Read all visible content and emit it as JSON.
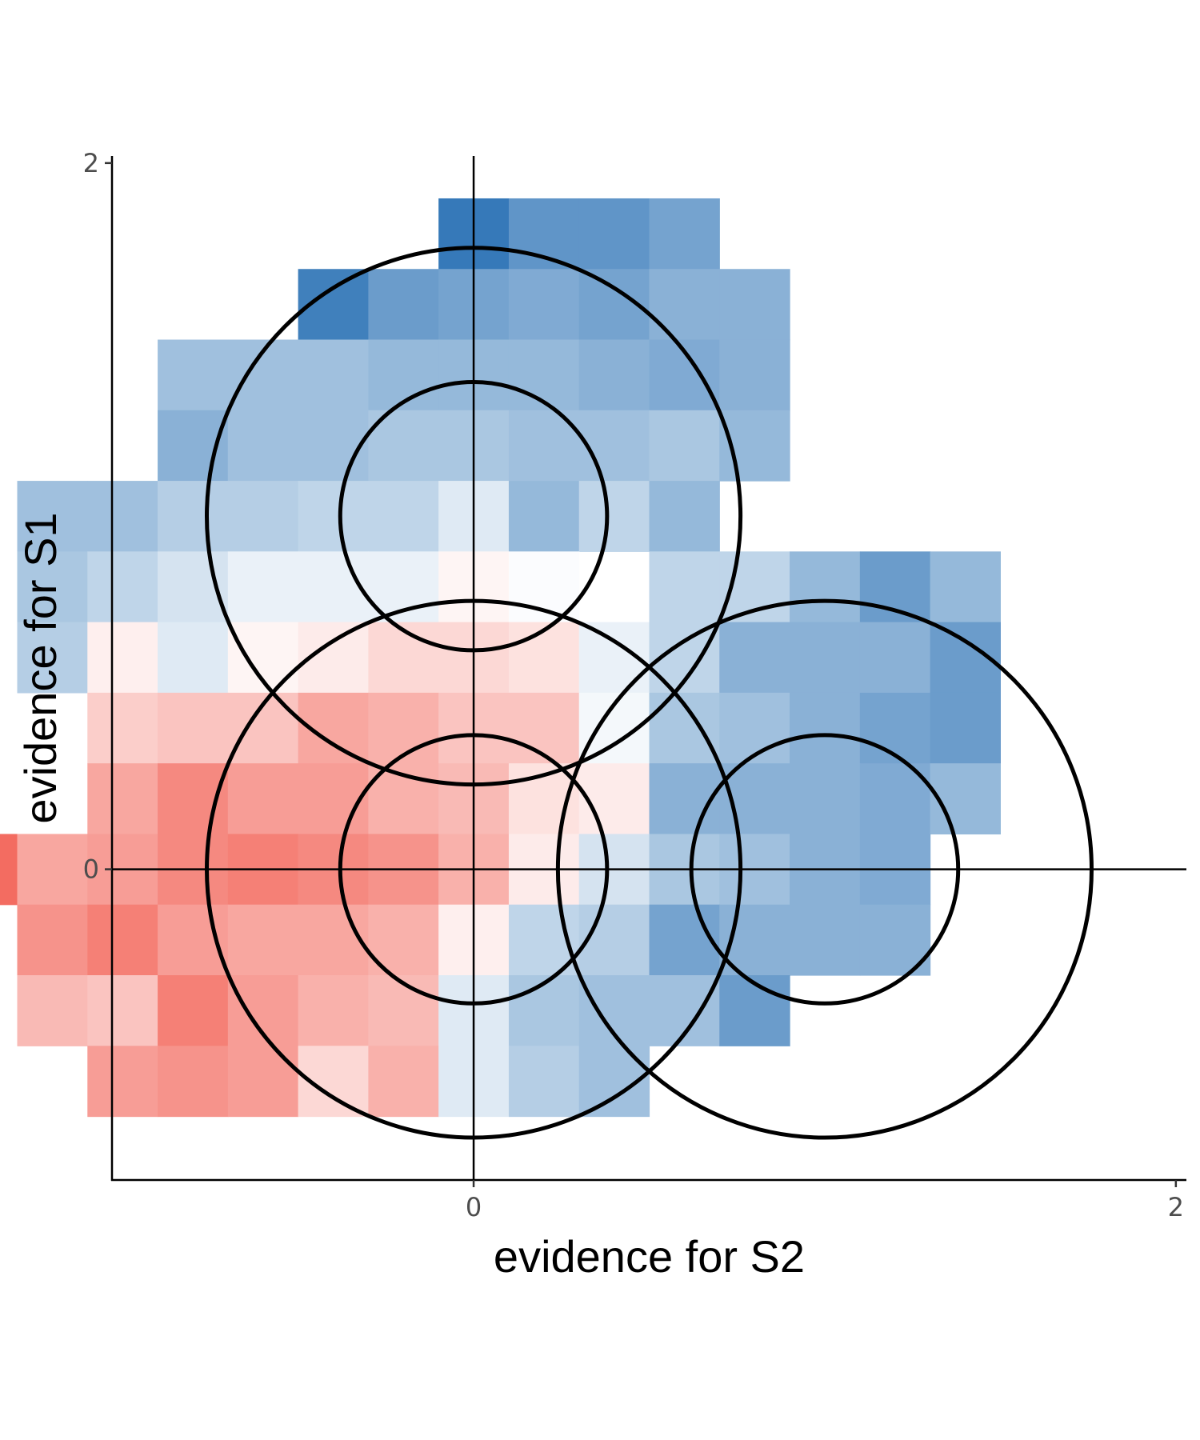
{
  "chart_data": {
    "type": "heatmap",
    "title": "",
    "xlabel": "evidence for S2",
    "ylabel": "evidence for S1",
    "xlim": [
      -1.03,
      2.03
    ],
    "ylim": [
      -0.88,
      2.02
    ],
    "x_ticks": [
      {
        "value": 0,
        "label": "0"
      },
      {
        "value": 2,
        "label": "2"
      }
    ],
    "y_ticks": [
      {
        "value": 0,
        "label": "0"
      },
      {
        "value": 2,
        "label": "2"
      }
    ],
    "reference_lines": {
      "x": 0,
      "y": 0
    },
    "grid": false,
    "legend": "none",
    "colors": {
      "negative": "#ef3b2c",
      "positive": "#2b72b5",
      "neutral": "#ffffff",
      "outline": "#000000"
    },
    "tile_size": 0.2,
    "value_note": "tile value in [-1, 1]: positive = blue, negative = red",
    "tiles": [
      {
        "x": 0.0,
        "y": 1.8,
        "value": 0.95
      },
      {
        "x": 0.2,
        "y": 1.8,
        "value": 0.75
      },
      {
        "x": 0.4,
        "y": 1.8,
        "value": 0.75
      },
      {
        "x": 0.6,
        "y": 1.8,
        "value": 0.65
      },
      {
        "x": -0.4,
        "y": 1.6,
        "value": 0.9
      },
      {
        "x": -0.2,
        "y": 1.6,
        "value": 0.7
      },
      {
        "x": 0.0,
        "y": 1.6,
        "value": 0.65
      },
      {
        "x": 0.2,
        "y": 1.6,
        "value": 0.6
      },
      {
        "x": 0.4,
        "y": 1.6,
        "value": 0.65
      },
      {
        "x": 0.6,
        "y": 1.6,
        "value": 0.55
      },
      {
        "x": 0.8,
        "y": 1.6,
        "value": 0.55
      },
      {
        "x": -0.8,
        "y": 1.4,
        "value": 0.45
      },
      {
        "x": -0.6,
        "y": 1.4,
        "value": 0.45
      },
      {
        "x": -0.4,
        "y": 1.4,
        "value": 0.45
      },
      {
        "x": -0.2,
        "y": 1.4,
        "value": 0.5
      },
      {
        "x": 0.0,
        "y": 1.4,
        "value": 0.5
      },
      {
        "x": 0.2,
        "y": 1.4,
        "value": 0.5
      },
      {
        "x": 0.4,
        "y": 1.4,
        "value": 0.55
      },
      {
        "x": 0.6,
        "y": 1.4,
        "value": 0.6
      },
      {
        "x": 0.8,
        "y": 1.4,
        "value": 0.55
      },
      {
        "x": -0.8,
        "y": 1.2,
        "value": 0.55
      },
      {
        "x": -0.6,
        "y": 1.2,
        "value": 0.45
      },
      {
        "x": -0.4,
        "y": 1.2,
        "value": 0.45
      },
      {
        "x": -0.2,
        "y": 1.2,
        "value": 0.4
      },
      {
        "x": 0.0,
        "y": 1.2,
        "value": 0.4
      },
      {
        "x": 0.2,
        "y": 1.2,
        "value": 0.45
      },
      {
        "x": 0.4,
        "y": 1.2,
        "value": 0.45
      },
      {
        "x": 0.6,
        "y": 1.2,
        "value": 0.4
      },
      {
        "x": 0.8,
        "y": 1.2,
        "value": 0.5
      },
      {
        "x": -1.2,
        "y": 1.0,
        "value": 0.45
      },
      {
        "x": -1.0,
        "y": 1.0,
        "value": 0.45
      },
      {
        "x": -0.8,
        "y": 1.0,
        "value": 0.35
      },
      {
        "x": -0.6,
        "y": 1.0,
        "value": 0.35
      },
      {
        "x": -0.4,
        "y": 1.0,
        "value": 0.3
      },
      {
        "x": -0.2,
        "y": 1.0,
        "value": 0.3
      },
      {
        "x": 0.0,
        "y": 1.0,
        "value": 0.15
      },
      {
        "x": 0.2,
        "y": 1.0,
        "value": 0.5
      },
      {
        "x": 0.4,
        "y": 1.0,
        "value": 0.3
      },
      {
        "x": 0.6,
        "y": 1.0,
        "value": 0.5
      },
      {
        "x": -1.2,
        "y": 0.8,
        "value": 0.4
      },
      {
        "x": -1.0,
        "y": 0.8,
        "value": 0.3
      },
      {
        "x": -0.8,
        "y": 0.8,
        "value": 0.2
      },
      {
        "x": -0.6,
        "y": 0.8,
        "value": 0.1
      },
      {
        "x": -0.4,
        "y": 0.8,
        "value": 0.1
      },
      {
        "x": -0.2,
        "y": 0.8,
        "value": 0.1
      },
      {
        "x": 0.0,
        "y": 0.8,
        "value": -0.05
      },
      {
        "x": 0.2,
        "y": 0.8,
        "value": 0.02
      },
      {
        "x": 0.6,
        "y": 0.8,
        "value": 0.3
      },
      {
        "x": 0.8,
        "y": 0.8,
        "value": 0.3
      },
      {
        "x": 1.0,
        "y": 0.8,
        "value": 0.5
      },
      {
        "x": 1.2,
        "y": 0.8,
        "value": 0.7
      },
      {
        "x": 1.4,
        "y": 0.8,
        "value": 0.5
      },
      {
        "x": -1.2,
        "y": 0.6,
        "value": 0.35
      },
      {
        "x": -1.0,
        "y": 0.6,
        "value": -0.08
      },
      {
        "x": -0.8,
        "y": 0.6,
        "value": 0.15
      },
      {
        "x": -0.6,
        "y": 0.6,
        "value": -0.05
      },
      {
        "x": -0.4,
        "y": 0.6,
        "value": -0.1
      },
      {
        "x": -0.2,
        "y": 0.6,
        "value": -0.2
      },
      {
        "x": 0.0,
        "y": 0.6,
        "value": -0.2
      },
      {
        "x": 0.2,
        "y": 0.6,
        "value": -0.15
      },
      {
        "x": 0.4,
        "y": 0.6,
        "value": 0.1
      },
      {
        "x": 0.6,
        "y": 0.6,
        "value": 0.3
      },
      {
        "x": 0.8,
        "y": 0.6,
        "value": 0.55
      },
      {
        "x": 1.0,
        "y": 0.6,
        "value": 0.55
      },
      {
        "x": 1.2,
        "y": 0.6,
        "value": 0.55
      },
      {
        "x": 1.4,
        "y": 0.6,
        "value": 0.7
      },
      {
        "x": -1.0,
        "y": 0.4,
        "value": -0.25
      },
      {
        "x": -0.8,
        "y": 0.4,
        "value": -0.3
      },
      {
        "x": -0.6,
        "y": 0.4,
        "value": -0.3
      },
      {
        "x": -0.4,
        "y": 0.4,
        "value": -0.45
      },
      {
        "x": -0.2,
        "y": 0.4,
        "value": -0.4
      },
      {
        "x": 0.0,
        "y": 0.4,
        "value": -0.3
      },
      {
        "x": 0.2,
        "y": 0.4,
        "value": -0.3
      },
      {
        "x": 0.4,
        "y": 0.4,
        "value": 0.05
      },
      {
        "x": 0.6,
        "y": 0.4,
        "value": 0.4
      },
      {
        "x": 0.8,
        "y": 0.4,
        "value": 0.45
      },
      {
        "x": 1.0,
        "y": 0.4,
        "value": 0.55
      },
      {
        "x": 1.2,
        "y": 0.4,
        "value": 0.65
      },
      {
        "x": 1.4,
        "y": 0.4,
        "value": 0.7
      },
      {
        "x": -1.0,
        "y": 0.2,
        "value": -0.45
      },
      {
        "x": -0.8,
        "y": 0.2,
        "value": -0.6
      },
      {
        "x": -0.6,
        "y": 0.2,
        "value": -0.5
      },
      {
        "x": -0.4,
        "y": 0.2,
        "value": -0.5
      },
      {
        "x": -0.2,
        "y": 0.2,
        "value": -0.4
      },
      {
        "x": 0.0,
        "y": 0.2,
        "value": -0.35
      },
      {
        "x": 0.2,
        "y": 0.2,
        "value": -0.15
      },
      {
        "x": 0.4,
        "y": 0.2,
        "value": -0.1
      },
      {
        "x": 0.6,
        "y": 0.2,
        "value": 0.55
      },
      {
        "x": 0.8,
        "y": 0.2,
        "value": 0.55
      },
      {
        "x": 1.0,
        "y": 0.2,
        "value": 0.55
      },
      {
        "x": 1.2,
        "y": 0.2,
        "value": 0.6
      },
      {
        "x": 1.4,
        "y": 0.2,
        "value": 0.5
      },
      {
        "x": -1.4,
        "y": 0.0,
        "value": -0.75
      },
      {
        "x": -1.2,
        "y": 0.0,
        "value": -0.45
      },
      {
        "x": -1.0,
        "y": 0.0,
        "value": -0.5
      },
      {
        "x": -0.8,
        "y": 0.0,
        "value": -0.6
      },
      {
        "x": -0.6,
        "y": 0.0,
        "value": -0.65
      },
      {
        "x": -0.4,
        "y": 0.0,
        "value": -0.6
      },
      {
        "x": -0.2,
        "y": 0.0,
        "value": -0.55
      },
      {
        "x": 0.0,
        "y": 0.0,
        "value": -0.4
      },
      {
        "x": 0.2,
        "y": 0.0,
        "value": -0.1
      },
      {
        "x": 0.4,
        "y": 0.0,
        "value": 0.2
      },
      {
        "x": 0.6,
        "y": 0.0,
        "value": 0.4
      },
      {
        "x": 0.8,
        "y": 0.0,
        "value": 0.45
      },
      {
        "x": 1.0,
        "y": 0.0,
        "value": 0.55
      },
      {
        "x": 1.2,
        "y": 0.0,
        "value": 0.6
      },
      {
        "x": -1.2,
        "y": -0.2,
        "value": -0.55
      },
      {
        "x": -1.0,
        "y": -0.2,
        "value": -0.65
      },
      {
        "x": -0.8,
        "y": -0.2,
        "value": -0.5
      },
      {
        "x": -0.6,
        "y": -0.2,
        "value": -0.45
      },
      {
        "x": -0.4,
        "y": -0.2,
        "value": -0.45
      },
      {
        "x": -0.2,
        "y": -0.2,
        "value": -0.4
      },
      {
        "x": 0.0,
        "y": -0.2,
        "value": -0.08
      },
      {
        "x": 0.2,
        "y": -0.2,
        "value": 0.3
      },
      {
        "x": 0.4,
        "y": -0.2,
        "value": 0.35
      },
      {
        "x": 0.6,
        "y": -0.2,
        "value": 0.65
      },
      {
        "x": 0.8,
        "y": -0.2,
        "value": 0.55
      },
      {
        "x": 1.0,
        "y": -0.2,
        "value": 0.55
      },
      {
        "x": 1.2,
        "y": -0.2,
        "value": 0.55
      },
      {
        "x": -1.2,
        "y": -0.4,
        "value": -0.35
      },
      {
        "x": -1.0,
        "y": -0.4,
        "value": -0.3
      },
      {
        "x": -0.8,
        "y": -0.4,
        "value": -0.65
      },
      {
        "x": -0.6,
        "y": -0.4,
        "value": -0.5
      },
      {
        "x": -0.4,
        "y": -0.4,
        "value": -0.4
      },
      {
        "x": -0.2,
        "y": -0.4,
        "value": -0.35
      },
      {
        "x": 0.0,
        "y": -0.4,
        "value": 0.15
      },
      {
        "x": 0.2,
        "y": -0.4,
        "value": 0.4
      },
      {
        "x": 0.4,
        "y": -0.4,
        "value": 0.45
      },
      {
        "x": 0.6,
        "y": -0.4,
        "value": 0.45
      },
      {
        "x": 0.8,
        "y": -0.4,
        "value": 0.7
      },
      {
        "x": -1.0,
        "y": -0.6,
        "value": -0.5
      },
      {
        "x": -0.8,
        "y": -0.6,
        "value": -0.55
      },
      {
        "x": -0.6,
        "y": -0.6,
        "value": -0.5
      },
      {
        "x": -0.4,
        "y": -0.6,
        "value": -0.2
      },
      {
        "x": -0.2,
        "y": -0.6,
        "value": -0.4
      },
      {
        "x": 0.0,
        "y": -0.6,
        "value": 0.15
      },
      {
        "x": 0.2,
        "y": -0.6,
        "value": 0.35
      },
      {
        "x": 0.4,
        "y": -0.6,
        "value": 0.45
      }
    ],
    "circles": [
      {
        "cx": 0,
        "cy": 1,
        "r": 0.76
      },
      {
        "cx": 0,
        "cy": 1,
        "r": 0.38
      },
      {
        "cx": 0,
        "cy": 0,
        "r": 0.76
      },
      {
        "cx": 0,
        "cy": 0,
        "r": 0.38
      },
      {
        "cx": 1,
        "cy": 0,
        "r": 0.76
      },
      {
        "cx": 1,
        "cy": 0,
        "r": 0.38
      }
    ]
  }
}
